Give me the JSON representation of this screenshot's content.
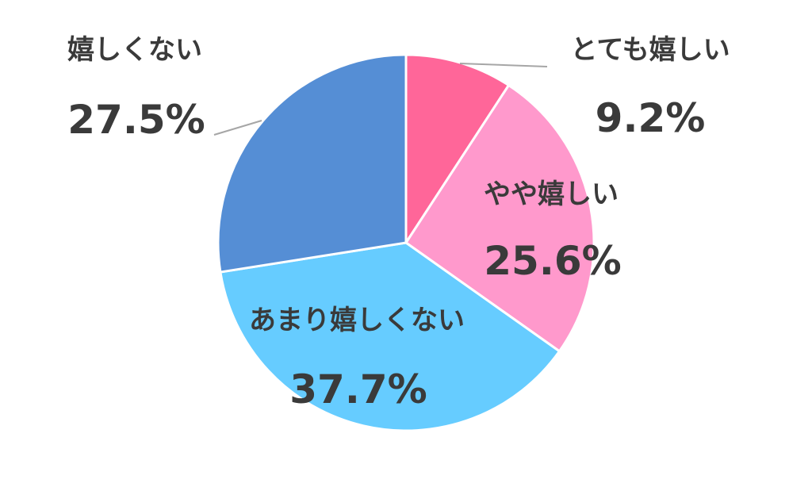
{
  "chart_data": {
    "type": "pie",
    "categories": [
      "とても嬉しい",
      "やや嬉しい",
      "あまり嬉しくない",
      "嬉しくない"
    ],
    "values": [
      9.2,
      25.6,
      37.7,
      27.5
    ],
    "value_labels": [
      "9.2%",
      "25.6%",
      "37.7%",
      "27.5%"
    ],
    "colors": [
      "#ff6699",
      "#ff99cc",
      "#66ccff",
      "#558ed5"
    ],
    "start": "12 o'clock",
    "direction": "clockwise"
  }
}
